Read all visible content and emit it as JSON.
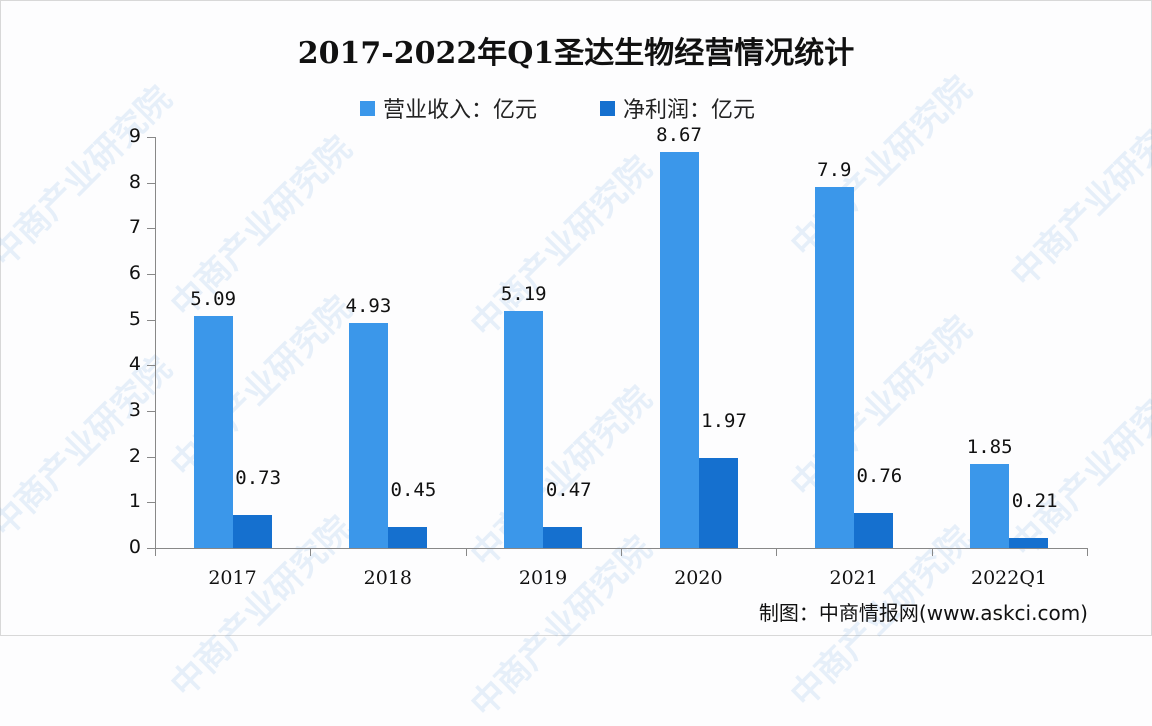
{
  "chart": {
    "title": "2017-2022年Q1圣达生物经营情况统计",
    "legend": [
      {
        "label": "营业收入：亿元",
        "color": "#3b97ea"
      },
      {
        "label": "净利润：亿元",
        "color": "#1570cf"
      }
    ],
    "y_ticks": [
      "0",
      "1",
      "2",
      "3",
      "4",
      "5",
      "6",
      "7",
      "8",
      "9"
    ],
    "categories": [
      "2017",
      "2018",
      "2019",
      "2020",
      "2021",
      "2022Q1"
    ],
    "revenue_labels": [
      "5.09",
      "4.93",
      "5.19",
      "8.67",
      "7.9",
      "1.85"
    ],
    "profit_labels": [
      "0.73",
      "0.45",
      "0.47",
      "1.97",
      "0.76",
      "0.21"
    ],
    "source": "制图：中商情报网(www.askci.com)",
    "watermark": "中商产业研究院"
  },
  "chart_data": {
    "type": "bar",
    "title": "2017-2022年Q1圣达生物经营情况统计",
    "categories": [
      "2017",
      "2018",
      "2019",
      "2020",
      "2021",
      "2022Q1"
    ],
    "series": [
      {
        "name": "营业收入：亿元",
        "values": [
          5.09,
          4.93,
          5.19,
          8.67,
          7.9,
          1.85
        ],
        "color": "#3b97ea"
      },
      {
        "name": "净利润：亿元",
        "values": [
          0.73,
          0.45,
          0.47,
          1.97,
          0.76,
          0.21
        ],
        "color": "#1570cf"
      }
    ],
    "xlabel": "",
    "ylabel": "",
    "ylim": [
      0,
      9
    ],
    "yticks": [
      0,
      1,
      2,
      3,
      4,
      5,
      6,
      7,
      8,
      9
    ],
    "grid": false,
    "legend_position": "top",
    "annotations": [
      "制图：中商情报网(www.askci.com)"
    ]
  }
}
